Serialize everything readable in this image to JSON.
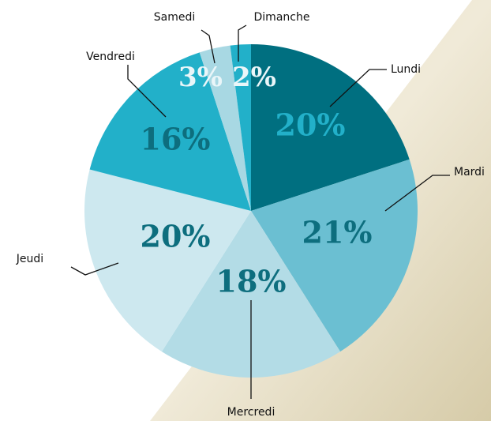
{
  "chart_data": {
    "type": "pie",
    "categories": [
      "Lundi",
      "Mardi",
      "Mercredi",
      "Jeudi",
      "Vendredi",
      "Samedi",
      "Dimanche"
    ],
    "values": [
      20,
      21,
      18,
      20,
      16,
      3,
      2
    ],
    "value_labels": [
      "20%",
      "21%",
      "18%",
      "20%",
      "16%",
      "3%",
      "2%"
    ],
    "colors": [
      "#006f80",
      "#6bbfd2",
      "#b3dce6",
      "#cde8ef",
      "#22b0c9",
      "#a8d8e3",
      "#22b0c9"
    ],
    "label_colors": [
      "#22b0c9",
      "#0d6e7e",
      "#0d6e7e",
      "#0d6e7e",
      "#0d6e7e",
      "#eaf6f9",
      "#eaf6f9"
    ]
  }
}
